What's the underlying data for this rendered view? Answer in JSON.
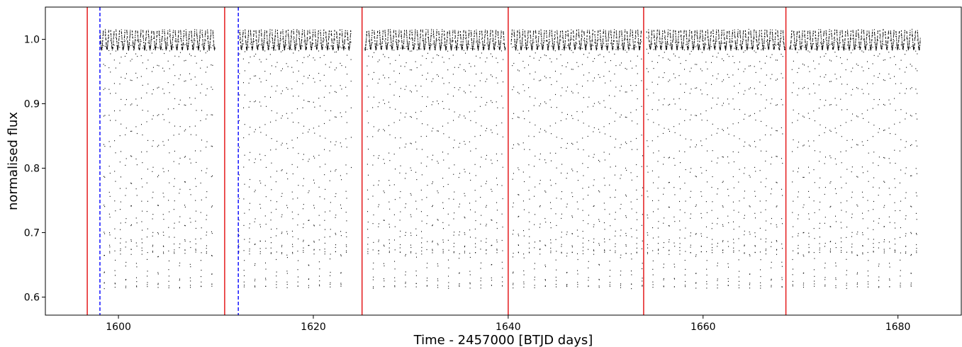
{
  "chart_data": {
    "type": "scatter",
    "title": "",
    "xlabel": "Time - 2457000 [BTJD days]",
    "ylabel": "normalised flux",
    "xlim": [
      1592.5,
      1686.5
    ],
    "ylim": [
      0.572,
      1.05
    ],
    "x_ticks": [
      1600,
      1620,
      1640,
      1660,
      1680
    ],
    "x_tick_labels": [
      "1600",
      "1620",
      "1640",
      "1660",
      "1680"
    ],
    "y_ticks": [
      0.6,
      0.7,
      0.8,
      0.9,
      1.0
    ],
    "y_tick_labels": [
      "0.6",
      "0.7",
      "0.8",
      "0.9",
      "1.0"
    ],
    "grid": false,
    "marker_color": "#000000",
    "segments": [
      {
        "start": 1598.1,
        "end": 1609.9
      },
      {
        "start": 1612.3,
        "end": 1623.9
      },
      {
        "start": 1625.3,
        "end": 1639.7
      },
      {
        "start": 1640.3,
        "end": 1653.8
      },
      {
        "start": 1654.2,
        "end": 1668.4
      },
      {
        "start": 1668.9,
        "end": 1682.3
      }
    ],
    "eclipse_period": 1.104,
    "eclipse_epoch": 1598.55,
    "primary_minimum_flux": 0.595,
    "secondary_minimum_flux": 0.648,
    "out_of_eclipse_flux_range": [
      0.985,
      1.025
    ],
    "vertical_lines": [
      {
        "x": 1596.8,
        "color": "#e41a1c",
        "style": "solid"
      },
      {
        "x": 1598.1,
        "color": "#0000ff",
        "style": "dashed"
      },
      {
        "x": 1610.9,
        "color": "#e41a1c",
        "style": "solid"
      },
      {
        "x": 1612.3,
        "color": "#0000ff",
        "style": "dashed"
      },
      {
        "x": 1625.0,
        "color": "#e41a1c",
        "style": "solid"
      },
      {
        "x": 1640.0,
        "color": "#e41a1c",
        "style": "solid"
      },
      {
        "x": 1653.9,
        "color": "#e41a1c",
        "style": "solid"
      },
      {
        "x": 1668.5,
        "color": "#e41a1c",
        "style": "solid"
      }
    ]
  }
}
